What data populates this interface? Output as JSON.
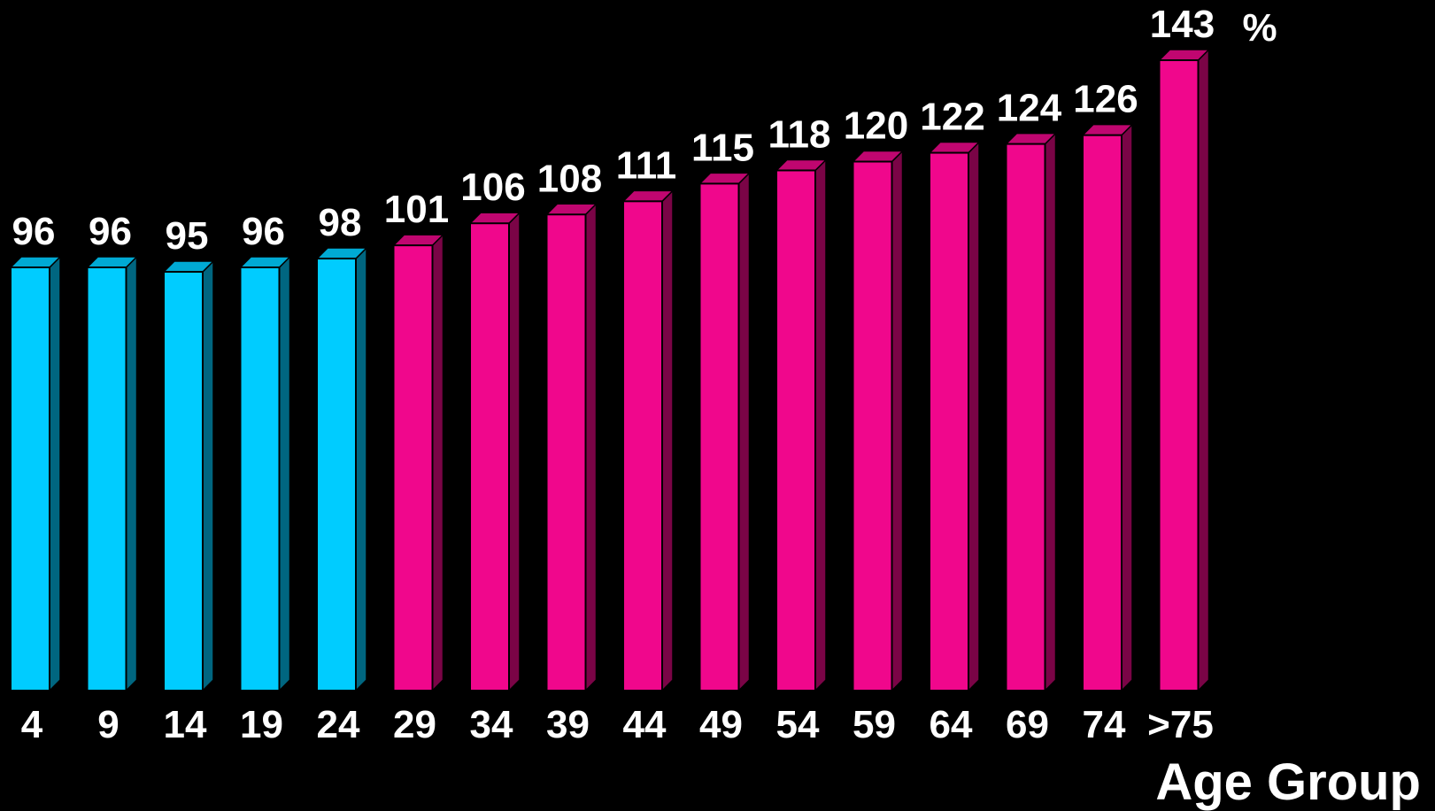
{
  "chart_data": {
    "type": "bar",
    "categories": [
      "4",
      "9",
      "14",
      "19",
      "24",
      "29",
      "34",
      "39",
      "44",
      "49",
      "54",
      "59",
      "64",
      "69",
      "74",
      ">75"
    ],
    "values": [
      96,
      96,
      95,
      96,
      98,
      101,
      106,
      108,
      111,
      115,
      118,
      120,
      122,
      124,
      126,
      143
    ],
    "value_labels": [
      "96",
      "96",
      "95",
      "96",
      "98",
      "101",
      "106",
      "108",
      "111",
      "115",
      "118",
      "120",
      "122",
      "124",
      "126",
      "143"
    ],
    "highlight_count": 5,
    "unit": "%",
    "xlabel": "Age Group",
    "ylabel": "",
    "title": "",
    "ylim": [
      0,
      143
    ],
    "grid": false,
    "colors": {
      "group1_front": "#00CCFF",
      "group1_side": "#006680",
      "group1_top": "#00AAD4",
      "group2_front": "#F0078C",
      "group2_side": "#7A0446",
      "group2_top": "#C00670",
      "background": "#000000",
      "text": "#FFFFFF"
    }
  }
}
